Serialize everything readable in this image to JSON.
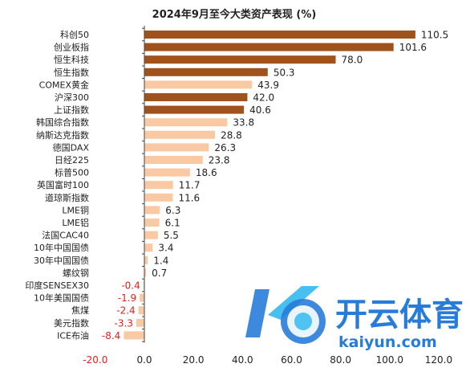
{
  "chart_data": {
    "type": "bar",
    "orientation": "horizontal",
    "title": "2024年9月至今大类资产表现 (%)",
    "xlim": [
      -20,
      120
    ],
    "x_ticks": [
      "-20.0",
      "0.0",
      "20.0",
      "40.0",
      "60.0",
      "80.0",
      "100.0",
      "120.0"
    ],
    "x_tick_values": [
      -20,
      0,
      20,
      40,
      60,
      80,
      100,
      120
    ],
    "grid": false,
    "categories": [
      "科创50",
      "创业板指",
      "恒生科技",
      "恒生指数",
      "COMEX黄金",
      "沪深300",
      "上证指数",
      "韩国综合指数",
      "纳斯达克指数",
      "德国DAX",
      "日经225",
      "标普500",
      "英国富时100",
      "道琼斯指数",
      "LME铜",
      "LME铝",
      "法国CAC40",
      "10年中国国债",
      "30年中国国债",
      "螺纹钢",
      "印度SENSEX30",
      "10年美国国债",
      "焦煤",
      "美元指数",
      "ICE布油"
    ],
    "values": [
      110.5,
      101.6,
      78.0,
      50.3,
      43.9,
      42.0,
      40.6,
      33.8,
      28.8,
      26.3,
      23.8,
      18.6,
      11.7,
      11.6,
      6.3,
      6.1,
      5.5,
      3.4,
      1.4,
      0.7,
      -0.4,
      -1.9,
      -2.4,
      -3.3,
      -8.4
    ],
    "labels": [
      "110.5",
      "101.6",
      "78.0",
      "50.3",
      "43.9",
      "42.0",
      "40.6",
      "33.8",
      "28.8",
      "26.3",
      "23.8",
      "18.6",
      "11.7",
      "11.6",
      "6.3",
      "6.1",
      "5.5",
      "3.4",
      "1.4",
      "0.7",
      "-0.4",
      "-1.9",
      "-2.4",
      "-3.3",
      "-8.4"
    ],
    "bar_style": [
      "dark",
      "dark",
      "dark",
      "dark",
      "light",
      "dark",
      "dark",
      "light",
      "light",
      "light",
      "light",
      "light",
      "light",
      "light",
      "light",
      "light",
      "light",
      "light",
      "light",
      "light",
      "light",
      "light",
      "light",
      "light",
      "light"
    ],
    "colors": {
      "dark": "#a0521c",
      "light": "#f9c9a4",
      "negative_label": "#e0201b",
      "positive_label": "#222222",
      "axis": "#444444"
    }
  },
  "watermark": {
    "logo_text": "K",
    "cn_text": "开云体育",
    "domain_text": "kaiyun.com",
    "colors": {
      "blue": "#1d75d8",
      "cyan": "#29b6f0"
    }
  }
}
